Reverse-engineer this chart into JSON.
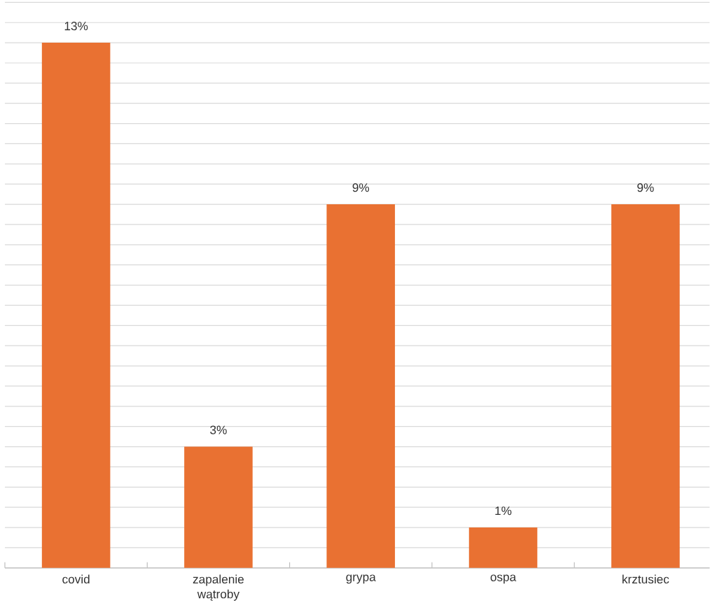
{
  "chart_data": {
    "type": "bar",
    "categories": [
      "covid",
      "zapalenie wątroby",
      "grypa",
      "ospa",
      "krztusiec"
    ],
    "values": [
      13,
      3,
      9,
      1,
      9
    ],
    "value_labels": [
      "13%",
      "3%",
      "9%",
      "1%",
      "9%"
    ],
    "color": "#e97132",
    "grid": "y",
    "tick_labels": "x"
  }
}
